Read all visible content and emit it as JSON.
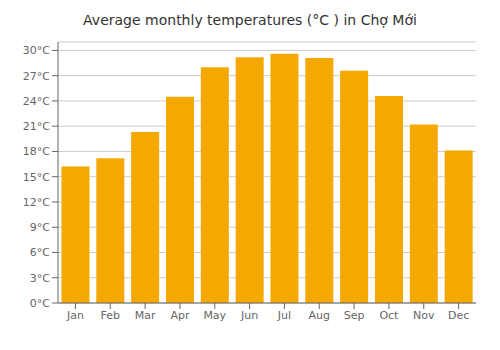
{
  "chart_data": {
    "type": "bar",
    "title": "Average monthly temperatures (°C ) in Chợ Mới",
    "categories": [
      "Jan",
      "Feb",
      "Mar",
      "Apr",
      "May",
      "Jun",
      "Jul",
      "Aug",
      "Sep",
      "Oct",
      "Nov",
      "Dec"
    ],
    "values": [
      16.2,
      17.2,
      20.3,
      24.5,
      28.0,
      29.2,
      29.6,
      29.1,
      27.6,
      24.6,
      21.2,
      18.1
    ],
    "color": "#F5A800",
    "ylim": [
      0,
      31
    ],
    "yticks": [
      {
        "value": 0,
        "label": "0°C"
      },
      {
        "value": 3,
        "label": "3°C"
      },
      {
        "value": 6,
        "label": "6°C"
      },
      {
        "value": 9,
        "label": "9°C"
      },
      {
        "value": 12,
        "label": "12°C"
      },
      {
        "value": 15,
        "label": "15°C"
      },
      {
        "value": 18,
        "label": "18°C"
      },
      {
        "value": 21,
        "label": "21°C"
      },
      {
        "value": 24,
        "label": "24°C"
      },
      {
        "value": 27,
        "label": "27°C"
      },
      {
        "value": 30,
        "label": "30°C"
      }
    ],
    "grid": true
  }
}
